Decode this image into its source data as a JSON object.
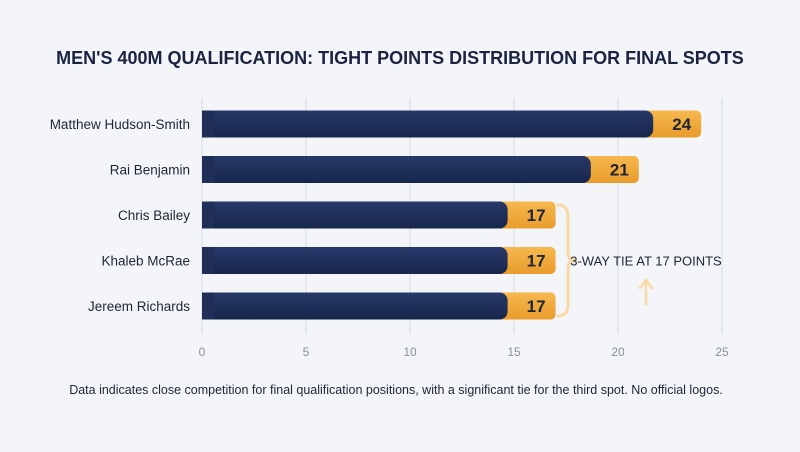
{
  "chart_data": {
    "type": "bar",
    "orientation": "horizontal",
    "title": "MEN'S 400M QUALIFICATION: TIGHT POINTS DISTRIBUTION FOR FINAL SPOTS",
    "categories": [
      "Matthew Hudson-Smith",
      "Rai Benjamin",
      "Chris Bailey",
      "Khaleb McRae",
      "Jereem Richards"
    ],
    "values": [
      24,
      21,
      17,
      17,
      17
    ],
    "value_labels": [
      "24",
      "21",
      "17",
      "17",
      "17"
    ],
    "xlim": [
      0,
      25
    ],
    "xticks": [
      0,
      5,
      10,
      15,
      20,
      25
    ],
    "xtick_labels": [
      "0",
      "5",
      "10",
      "15",
      "20",
      "25"
    ],
    "grid": true,
    "colors": {
      "bar_main": "#1e2f55",
      "bar_tip": "#f2a93b",
      "bracket": "#f8d9a6",
      "text": "#1f2535",
      "title": "#1a2440",
      "grid": "#d7dbe3",
      "tick": "#8a909c",
      "background": "#f3f5f8"
    },
    "annotations": [
      {
        "text": "3-WAY TIE AT 17 POINTS",
        "applies_to": [
          "Chris Bailey",
          "Khaleb McRae",
          "Jereem Richards"
        ],
        "shape": "bracket-with-up-arrow"
      }
    ],
    "caption": "Data indicates close competition for final qualification positions, with a significant tie for the third spot. No official logos."
  }
}
